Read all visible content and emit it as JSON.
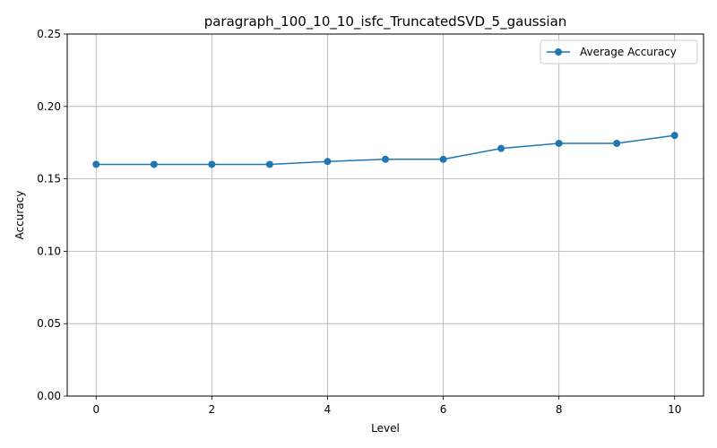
{
  "chart_data": {
    "type": "line",
    "title": "paragraph_100_10_10_isfc_TruncatedSVD_5_gaussian",
    "xlabel": "Level",
    "ylabel": "Accuracy",
    "x": [
      0,
      1,
      2,
      3,
      4,
      5,
      6,
      7,
      8,
      9,
      10
    ],
    "series": [
      {
        "name": "Average Accuracy",
        "color": "#1f77b4",
        "values": [
          0.16,
          0.16,
          0.16,
          0.16,
          0.162,
          0.1635,
          0.1635,
          0.171,
          0.1745,
          0.1745,
          0.18
        ]
      }
    ],
    "xlim": [
      -0.5,
      10.5
    ],
    "ylim": [
      0,
      0.25
    ],
    "xticks": [
      0,
      2,
      4,
      6,
      8,
      10
    ],
    "xtick_labels": [
      "0",
      "2",
      "4",
      "6",
      "8",
      "10"
    ],
    "yticks": [
      0,
      0.05,
      0.1,
      0.15,
      0.2,
      0.25
    ],
    "ytick_labels": [
      "0.00",
      "0.05",
      "0.10",
      "0.15",
      "0.20",
      "0.25"
    ],
    "grid": true,
    "legend_position": "top-right"
  }
}
